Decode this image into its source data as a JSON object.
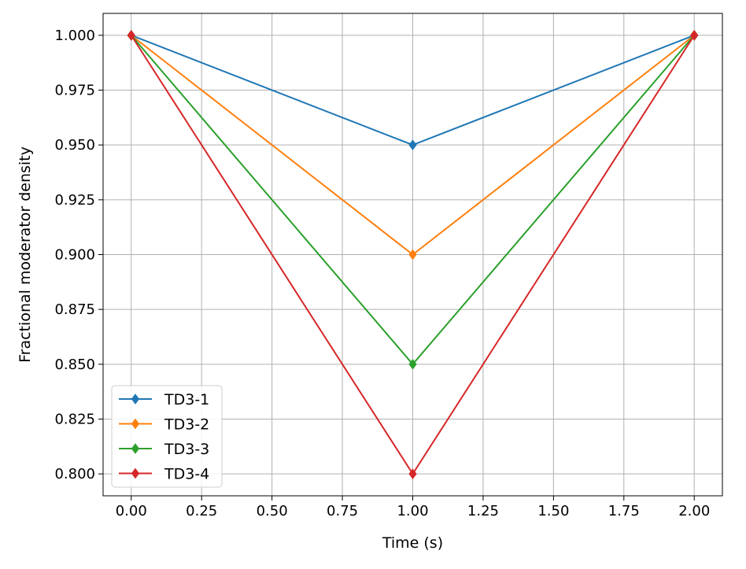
{
  "chart_data": {
    "type": "line",
    "title": "",
    "xlabel": "Time (s)",
    "ylabel": "Fractional moderator density",
    "xlim": [
      -0.1,
      2.1
    ],
    "ylim": [
      0.79,
      1.01
    ],
    "x_ticks": [
      0.0,
      0.25,
      0.5,
      0.75,
      1.0,
      1.25,
      1.5,
      1.75,
      2.0
    ],
    "x_tick_labels": [
      "0.00",
      "0.25",
      "0.50",
      "0.75",
      "1.00",
      "1.25",
      "1.50",
      "1.75",
      "2.00"
    ],
    "y_ticks": [
      0.8,
      0.825,
      0.85,
      0.875,
      0.9,
      0.925,
      0.95,
      0.975,
      1.0
    ],
    "y_tick_labels": [
      "0.800",
      "0.825",
      "0.850",
      "0.875",
      "0.900",
      "0.925",
      "0.950",
      "0.975",
      "1.000"
    ],
    "grid": true,
    "legend_position": "lower-left",
    "x": [
      0.0,
      1.0,
      2.0
    ],
    "series": [
      {
        "name": "TD3-1",
        "values": [
          1.0,
          0.95,
          1.0
        ],
        "color": "#1f77b4",
        "marker": "diamond"
      },
      {
        "name": "TD3-2",
        "values": [
          1.0,
          0.9,
          1.0
        ],
        "color": "#ff7f0e",
        "marker": "diamond"
      },
      {
        "name": "TD3-3",
        "values": [
          1.0,
          0.85,
          1.0
        ],
        "color": "#2ca02c",
        "marker": "diamond"
      },
      {
        "name": "TD3-4",
        "values": [
          1.0,
          0.8,
          1.0
        ],
        "color": "#d62728",
        "marker": "diamond"
      }
    ]
  }
}
